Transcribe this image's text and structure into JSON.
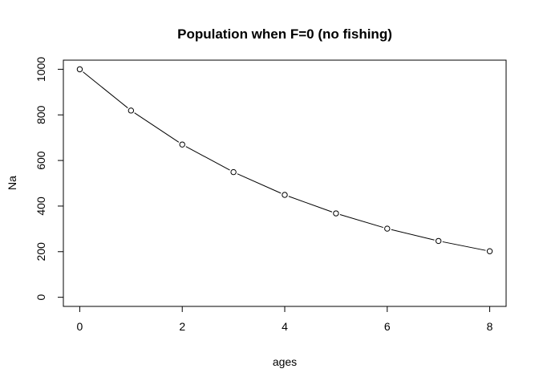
{
  "chart_data": {
    "type": "line",
    "title": "Population when F=0 (no fishing)",
    "xlabel": "ages",
    "ylabel": "Na",
    "x": [
      0,
      1,
      2,
      3,
      4,
      5,
      6,
      7,
      8
    ],
    "series": [
      {
        "values": [
          1000,
          819,
          670,
          549,
          449,
          368,
          301,
          247,
          202
        ]
      }
    ],
    "xlim": [
      -0.32,
      8.32
    ],
    "ylim": [
      -40,
      1040
    ],
    "xticks": [
      "0",
      "2",
      "4",
      "6",
      "8"
    ],
    "yticks": [
      "0",
      "200",
      "400",
      "600",
      "800",
      "1000"
    ],
    "grid": false,
    "marker": "open-circle",
    "line_color": "#000000"
  }
}
